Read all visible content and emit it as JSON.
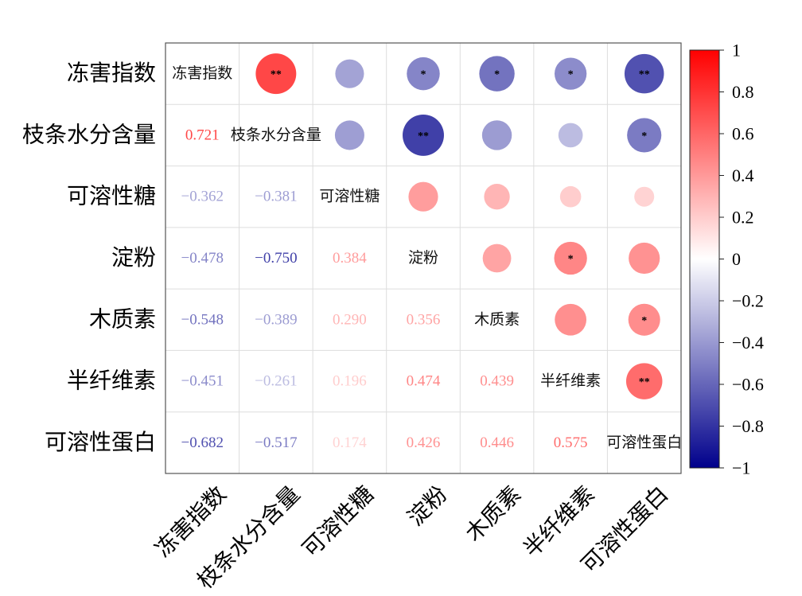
{
  "chart_data": {
    "type": "heatmap",
    "variables": [
      "冻害指数",
      "枝条水分含量",
      "可溶性糖",
      "淀粉",
      "木质素",
      "半纤维素",
      "可溶性蛋白"
    ],
    "matrix": [
      [
        1,
        0.721,
        -0.362,
        -0.478,
        -0.548,
        -0.451,
        -0.682
      ],
      [
        0.721,
        1,
        -0.381,
        -0.75,
        -0.389,
        -0.261,
        -0.517
      ],
      [
        -0.362,
        -0.381,
        1,
        0.384,
        0.29,
        0.196,
        0.174
      ],
      [
        -0.478,
        -0.75,
        0.384,
        1,
        0.356,
        0.474,
        0.426
      ],
      [
        -0.548,
        -0.389,
        0.29,
        0.356,
        1,
        0.439,
        0.446
      ],
      [
        -0.451,
        -0.261,
        0.196,
        0.474,
        0.439,
        1,
        0.575
      ],
      [
        -0.682,
        -0.517,
        0.174,
        0.426,
        0.446,
        0.575,
        1
      ]
    ],
    "lower_labels": [
      [
        null,
        null,
        null,
        null,
        null,
        null,
        null
      ],
      [
        "0.721",
        null,
        null,
        null,
        null,
        null,
        null
      ],
      [
        "−0.362",
        "−0.381",
        null,
        null,
        null,
        null,
        null
      ],
      [
        "−0.478",
        "−0.750",
        "0.384",
        null,
        null,
        null,
        null
      ],
      [
        "−0.548",
        "−0.389",
        "0.290",
        "0.356",
        null,
        null,
        null
      ],
      [
        "−0.451",
        "−0.261",
        "0.196",
        "0.474",
        "0.439",
        null,
        null
      ],
      [
        "−0.682",
        "−0.517",
        "0.174",
        "0.426",
        "0.446",
        "0.575",
        null
      ]
    ],
    "significance": [
      [
        "",
        "**",
        "",
        "*",
        "*",
        "*",
        "**"
      ],
      [
        "",
        "",
        "",
        "**",
        "",
        "",
        "*"
      ],
      [
        "",
        "",
        "",
        "",
        "",
        "",
        ""
      ],
      [
        "",
        "",
        "",
        "",
        "",
        "*",
        ""
      ],
      [
        "",
        "",
        "",
        "",
        "",
        "",
        "*"
      ],
      [
        "",
        "",
        "",
        "",
        "",
        "",
        "**"
      ],
      [
        "",
        "",
        "",
        "",
        "",
        "",
        ""
      ]
    ],
    "colorbar": {
      "range": [
        -1,
        1
      ],
      "ticks": [
        "1",
        "0.8",
        "0.6",
        "0.4",
        "0.2",
        "0",
        "−0.2",
        "−0.4",
        "−0.6",
        "−0.8",
        "−1"
      ],
      "tick_values": [
        1,
        0.8,
        0.6,
        0.4,
        0.2,
        0,
        -0.2,
        -0.4,
        -0.6,
        -0.8,
        -1
      ],
      "low_color": "#00008b",
      "mid_color": "#ffffff",
      "high_color": "#ff0000"
    },
    "layout": {
      "upper": "circles",
      "diagonal": "variable names",
      "lower": "coefficient values"
    }
  }
}
